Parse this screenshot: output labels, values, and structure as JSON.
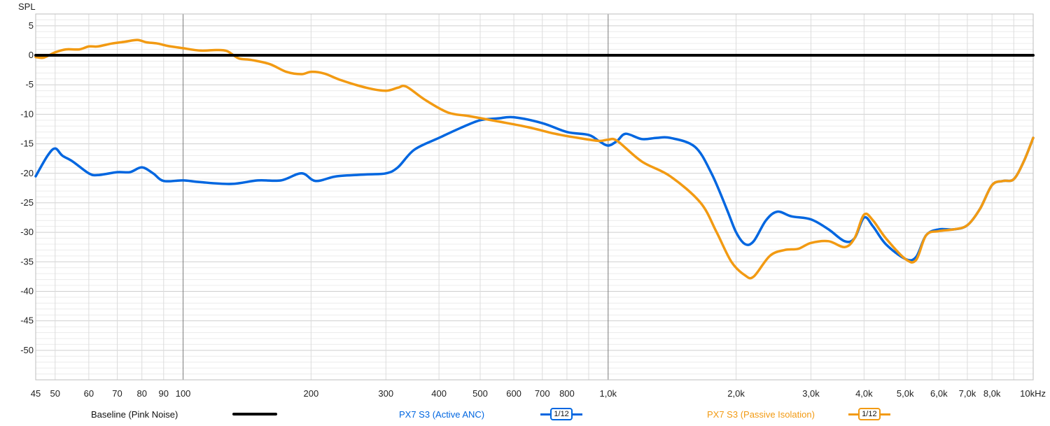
{
  "colors": {
    "baseline": "#000000",
    "active": "#0066e0",
    "passive": "#f29a12",
    "grid": "#d9d9d9",
    "axis_text": "#222222"
  },
  "chart_data": {
    "type": "line",
    "ylabel": "SPL",
    "x_scale": "log",
    "xlim": [
      45,
      10000
    ],
    "ylim": [
      -55,
      7
    ],
    "grid": true,
    "legend_position": "bottom",
    "y_ticks": [
      5,
      0,
      -5,
      -10,
      -15,
      -20,
      -25,
      -30,
      -35,
      -40,
      -45,
      -50
    ],
    "x_ticks": [
      {
        "value": 45,
        "label": "45"
      },
      {
        "value": 50,
        "label": "50"
      },
      {
        "value": 60,
        "label": "60"
      },
      {
        "value": 70,
        "label": "70"
      },
      {
        "value": 80,
        "label": "80"
      },
      {
        "value": 90,
        "label": "90"
      },
      {
        "value": 100,
        "label": "100"
      },
      {
        "value": 200,
        "label": "200"
      },
      {
        "value": 300,
        "label": "300"
      },
      {
        "value": 400,
        "label": "400"
      },
      {
        "value": 500,
        "label": "500"
      },
      {
        "value": 600,
        "label": "600"
      },
      {
        "value": 700,
        "label": "700"
      },
      {
        "value": 800,
        "label": "800"
      },
      {
        "value": 1000,
        "label": "1,0k"
      },
      {
        "value": 2000,
        "label": "2,0k"
      },
      {
        "value": 3000,
        "label": "3,0k"
      },
      {
        "value": 4000,
        "label": "4,0k"
      },
      {
        "value": 5000,
        "label": "5,0k"
      },
      {
        "value": 6000,
        "label": "6,0k"
      },
      {
        "value": 7000,
        "label": "7,0k"
      },
      {
        "value": 8000,
        "label": "8,0k"
      },
      {
        "value": 10000,
        "label": "10kHz"
      }
    ],
    "series": [
      {
        "name": "Baseline (Pink Noise)",
        "color": "#000000",
        "smoothing": "",
        "x": [
          45,
          10000
        ],
        "y": [
          0,
          0
        ]
      },
      {
        "name": "PX7 S3 (Active ANC)",
        "color": "#0066e0",
        "smoothing": "1/12",
        "x": [
          45,
          48,
          50,
          52,
          55,
          60,
          63,
          70,
          75,
          80,
          85,
          90,
          100,
          110,
          130,
          150,
          170,
          190,
          205,
          230,
          270,
          300,
          320,
          350,
          400,
          450,
          500,
          550,
          600,
          700,
          800,
          900,
          950,
          1000,
          1050,
          1100,
          1200,
          1300,
          1400,
          1600,
          1750,
          1900,
          2000,
          2100,
          2200,
          2350,
          2500,
          2700,
          3000,
          3300,
          3600,
          3800,
          4000,
          4200,
          4500,
          5000,
          5300,
          5600,
          6000,
          6500,
          7000,
          7500,
          8000,
          8500,
          9000,
          9500,
          10000
        ],
        "y": [
          -20.5,
          -17,
          -15.8,
          -17,
          -18,
          -20,
          -20.3,
          -19.8,
          -19.8,
          -19,
          -20,
          -21.3,
          -21.2,
          -21.5,
          -21.8,
          -21.2,
          -21.2,
          -20,
          -21.3,
          -20.5,
          -20.2,
          -20,
          -19,
          -16,
          -14,
          -12.3,
          -11,
          -10.7,
          -10.5,
          -11.5,
          -13,
          -13.5,
          -14.5,
          -15.3,
          -14.5,
          -13.3,
          -14.2,
          -14,
          -14,
          -15.5,
          -20,
          -26,
          -30,
          -32,
          -31.5,
          -28,
          -26.5,
          -27.3,
          -27.8,
          -29.5,
          -31.5,
          -31,
          -27.5,
          -29,
          -32,
          -34.5,
          -34.2,
          -30.5,
          -29.5,
          -29.5,
          -28.8,
          -26,
          -22,
          -21.3,
          -21,
          -18,
          -14
        ]
      },
      {
        "name": "PX7 S3 (Passive Isolation)",
        "color": "#f29a12",
        "smoothing": "1/12",
        "x": [
          45,
          47,
          50,
          53,
          57,
          60,
          63,
          68,
          73,
          78,
          82,
          87,
          92,
          100,
          110,
          120,
          127,
          135,
          145,
          160,
          175,
          190,
          200,
          215,
          235,
          270,
          300,
          320,
          335,
          370,
          420,
          470,
          550,
          650,
          750,
          850,
          950,
          1000,
          1050,
          1200,
          1400,
          1650,
          1800,
          1950,
          2100,
          2200,
          2400,
          2600,
          2800,
          3000,
          3300,
          3600,
          3800,
          4000,
          4200,
          4500,
          5000,
          5300,
          5600,
          6000,
          6500,
          7000,
          7500,
          8000,
          8500,
          9000,
          9500,
          10000
        ],
        "y": [
          -0.3,
          -0.4,
          0.5,
          1.0,
          1.0,
          1.5,
          1.5,
          2.0,
          2.3,
          2.6,
          2.2,
          2.0,
          1.6,
          1.2,
          0.8,
          0.9,
          0.7,
          -0.5,
          -0.8,
          -1.5,
          -2.8,
          -3.2,
          -2.8,
          -3.1,
          -4.2,
          -5.5,
          -6.0,
          -5.5,
          -5.3,
          -7.5,
          -9.7,
          -10.3,
          -11.2,
          -12.2,
          -13.3,
          -14,
          -14.5,
          -14.3,
          -14.5,
          -18,
          -20.5,
          -25,
          -30,
          -35,
          -37.3,
          -37.5,
          -34,
          -33,
          -32.8,
          -31.8,
          -31.5,
          -32.5,
          -31,
          -27,
          -28,
          -31,
          -34.5,
          -34.7,
          -30.5,
          -29.8,
          -29.5,
          -28.8,
          -26,
          -22,
          -21.3,
          -21,
          -18,
          -14
        ]
      }
    ]
  }
}
